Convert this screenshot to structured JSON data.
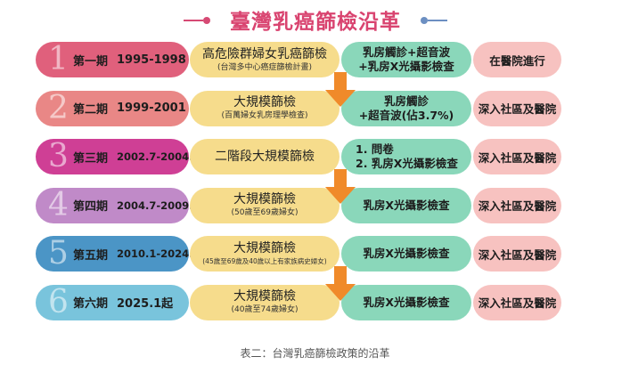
{
  "title": "臺灣乳癌篩檢沿革",
  "caption": "表二：台灣乳癌篩檢政策的沿革",
  "colors": {
    "title": "#d94470",
    "program": "#f6dc8c",
    "method": "#8ad7ba",
    "place": "#f7c2c0",
    "arrow": "#f08a2a"
  },
  "rows": [
    {
      "num": "1",
      "phase": "第一期",
      "years": "1995-1998",
      "color": "#e0607c",
      "program": "高危險群婦女乳癌篩檢",
      "program_sub": "(台灣多中心癌症篩檢計畫)",
      "method_lines": [
        "乳房觸診+超音波",
        "+乳房X光攝影檢查"
      ],
      "method_list": false,
      "place": "在醫院進行"
    },
    {
      "num": "2",
      "phase": "第二期",
      "years": "1999-2001",
      "color": "#e98786",
      "program": "大規模篩檢",
      "program_sub": "(百萬婦女乳房理學檢查)",
      "method_lines": [
        "乳房觸診",
        "+超音波(佔3.7%)"
      ],
      "method_list": false,
      "place": "深入社區及醫院"
    },
    {
      "num": "3",
      "phase": "第三期",
      "years": "2002.7-2004.7",
      "color": "#cf3f95",
      "program": "二階段大規模篩檢",
      "program_sub": "",
      "method_lines": [
        "1. 問卷",
        "2. 乳房X光攝影檢查"
      ],
      "method_list": true,
      "place": "深入社區及醫院"
    },
    {
      "num": "4",
      "phase": "第四期",
      "years": "2004.7-2009.12",
      "color": "#c08ac8",
      "program": "大規模篩檢",
      "program_sub": "(50歲至69歲婦女)",
      "method_lines": [
        "乳房X光攝影檢查"
      ],
      "method_list": false,
      "place": "深入社區及醫院"
    },
    {
      "num": "5",
      "phase": "第五期",
      "years": "2010.1-2024.12",
      "color": "#4b95c6",
      "program": "大規模篩檢",
      "program_sub": "(45歲至69歲及40歲以上有家族病史婦女)",
      "method_lines": [
        "乳房X光攝影檢查"
      ],
      "method_list": false,
      "place": "深入社區及醫院"
    },
    {
      "num": "6",
      "phase": "第六期",
      "years": "2025.1起",
      "color": "#79c4dc",
      "program": "大規模篩檢",
      "program_sub": "(40歲至74歲婦女)",
      "method_lines": [
        "乳房X光攝影檢查"
      ],
      "method_list": false,
      "place": "深入社區及醫院"
    }
  ],
  "arrows_after_rows": [
    1,
    3,
    5
  ],
  "icons": {
    "arrow": "down-arrow-icon"
  }
}
